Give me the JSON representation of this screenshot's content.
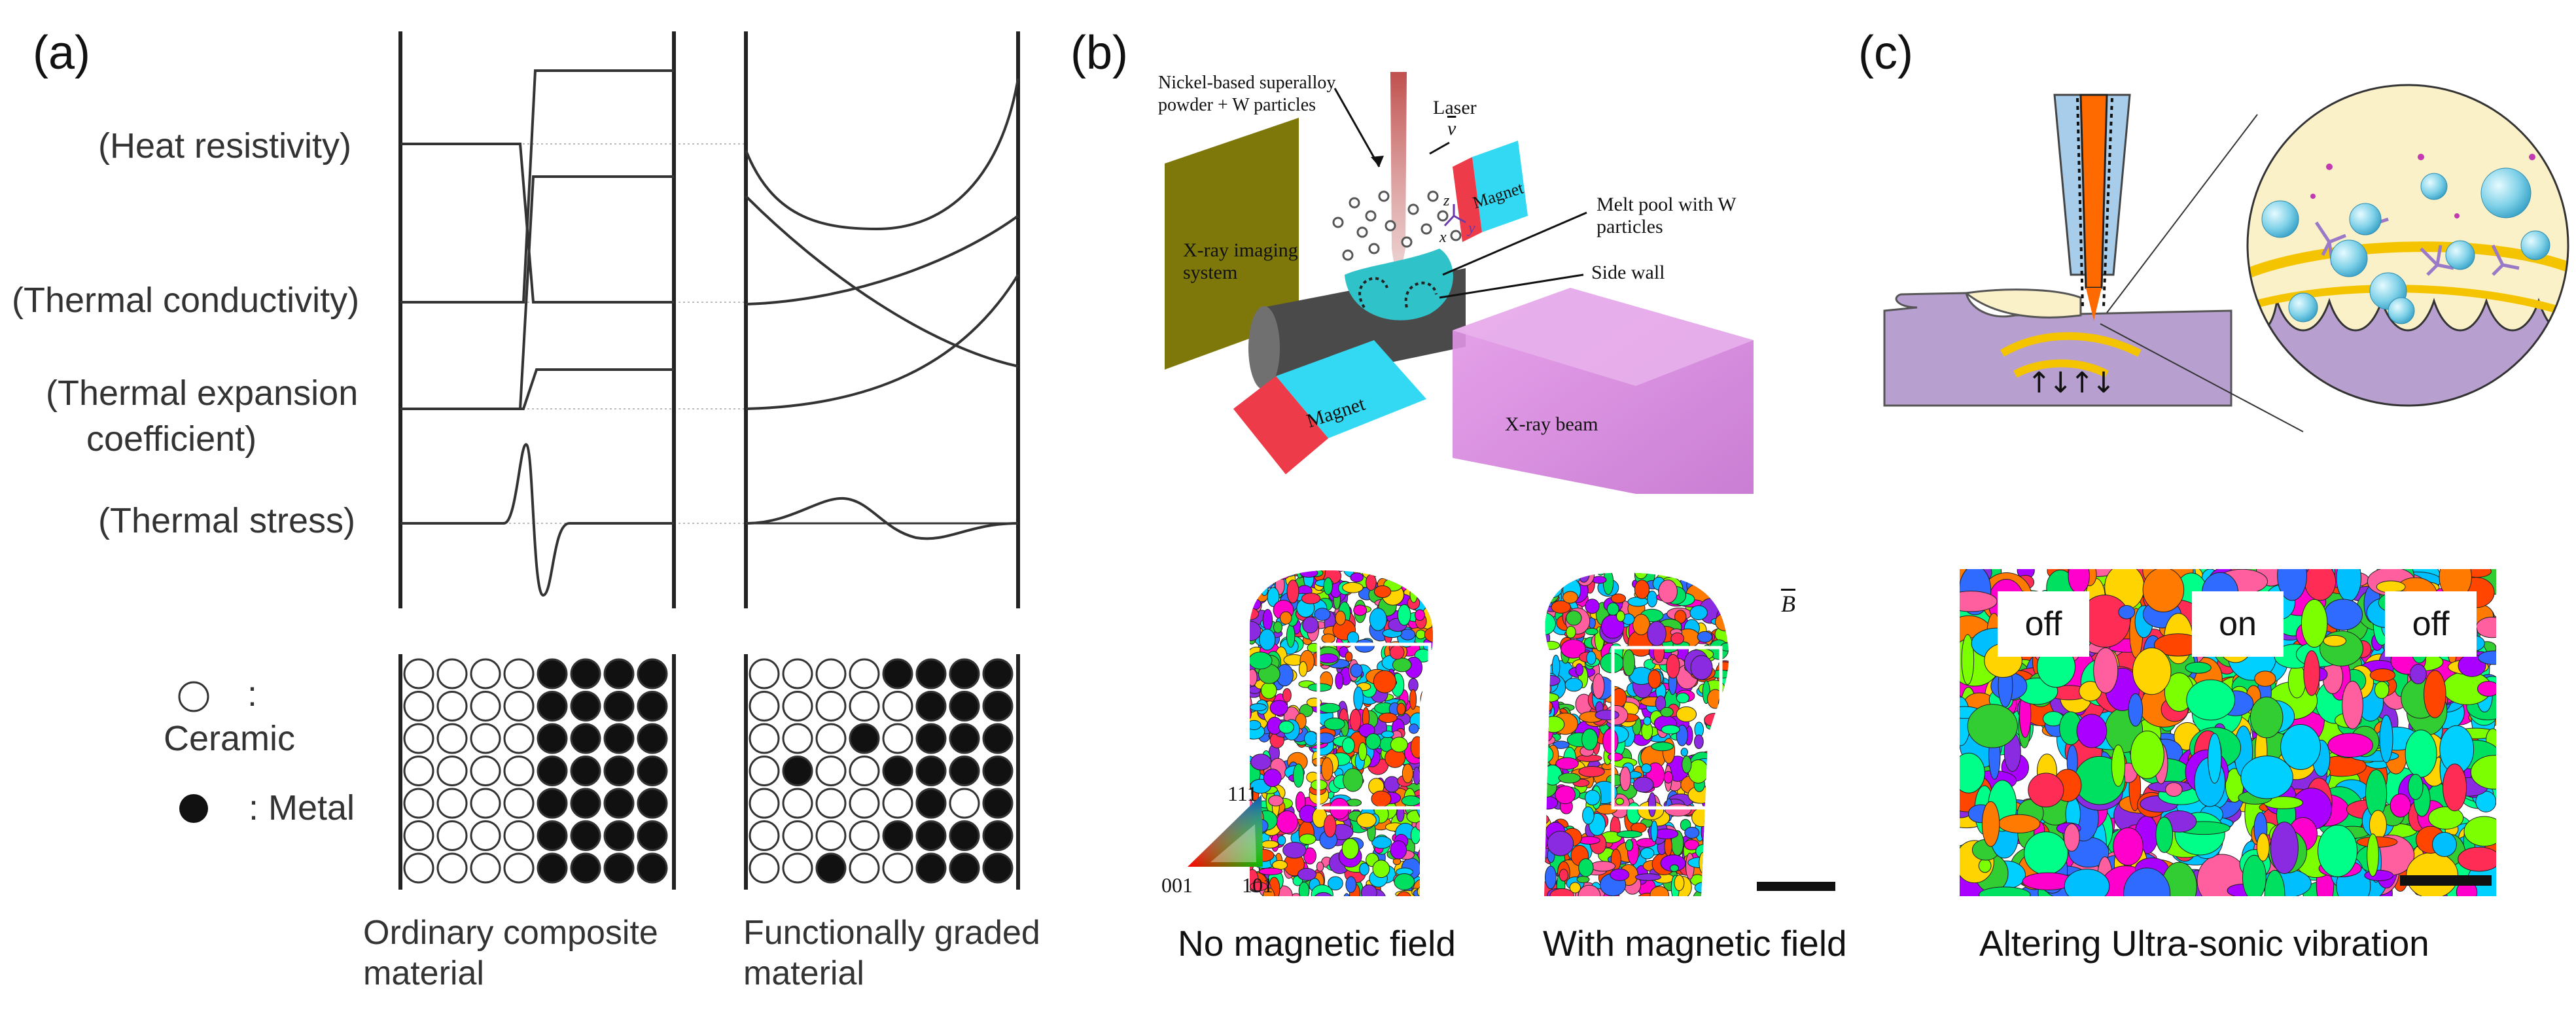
{
  "panel_a": {
    "letter": "(a)",
    "properties": [
      "(Heat resistivity)",
      "(Thermal conductivity)",
      "(Thermal expansion",
      "coefficient)",
      "(Thermal stress)"
    ],
    "legend": {
      "ceramic_colon": ":",
      "ceramic": "Ceramic",
      "metal": ": Metal"
    },
    "captions": {
      "ordinary_1": "Ordinary composite",
      "ordinary_2": "material",
      "fgm_1": "Functionally graded",
      "fgm_2": "material"
    }
  },
  "panel_b": {
    "letter": "(b)",
    "labels": {
      "powder_1": "Nickel-based superalloy",
      "powder_2": "powder + W particles",
      "laser": "Laser",
      "v": "v",
      "magnet_top": "Magnet",
      "magnet_bottom": "Magnet",
      "melt_pool_1": "Melt pool with W",
      "melt_pool_2": "particles",
      "side_wall": "Side wall",
      "xray_imaging_1": "X-ray imaging",
      "xray_imaging_2": "system",
      "xray_beam": "X-ray beam",
      "axis_z": "z",
      "axis_x": "x",
      "axis_y": "y"
    },
    "ipf_key": {
      "top": "111",
      "left": "001",
      "right": "101"
    },
    "b_vector": "B",
    "captions": {
      "no_field": "No magnetic field",
      "with_field": "With magnetic field"
    }
  },
  "panel_c": {
    "letter": "(c)",
    "vibration_arrows": "↑↓↑↓",
    "tags": [
      "off",
      "on",
      "off"
    ],
    "caption": "Altering Ultra-sonic vibration"
  },
  "colors": {
    "xray_panel": "#7e780a",
    "laser": "#c0504d",
    "magnet_red": "#ee3b4a",
    "magnet_cyan": "#33d9f2",
    "xray_beam": "#d67be0",
    "substrate": "#b79fcf",
    "inset_bg": "#fbf1c9",
    "yellow_band": "#f5c400",
    "nozzle_orange": "#ff6a00"
  }
}
